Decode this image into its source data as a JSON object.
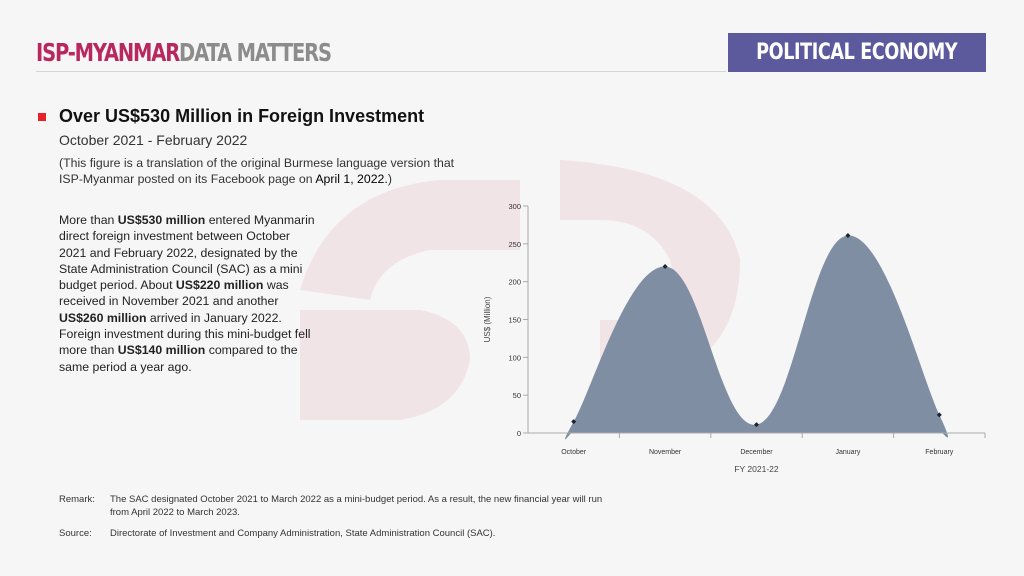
{
  "header": {
    "brand_primary": "ISP-MYANMAR",
    "brand_secondary": "DATA MATTERS",
    "section": "POLITICAL ECONOMY"
  },
  "colors": {
    "brand": "#b8285f",
    "section_bg": "#5c5a9c",
    "area_fill": "#7f8ea2",
    "bullet": "#e8202a"
  },
  "content": {
    "title": "Over US$530 Million in Foreign Investment",
    "subtitle": "October 2021 - February 2022",
    "note_prefix": "(This figure is a translation of the original Burmese language version that ISP-Myanmar posted on its Facebook page on ",
    "note_date": "April 1, 2022.",
    "note_suffix": ")",
    "body": [
      {
        "t": "More than ",
        "b": false
      },
      {
        "t": "US$530 million",
        "b": true
      },
      {
        "t": " entered Myanmarin direct foreign investment between October 2021 and February 2022, designated by the State Administration Council (SAC) as a mini budget period. About ",
        "b": false
      },
      {
        "t": "US$220 million",
        "b": true
      },
      {
        "t": " was received in November 2021 and another ",
        "b": false
      },
      {
        "t": "US$260 million",
        "b": true
      },
      {
        "t": " arrived in January 2022. Foreign investment during this mini-budget fell more than ",
        "b": false
      },
      {
        "t": "US$140 million",
        "b": true
      },
      {
        "t": " compared to the same period a year ago.",
        "b": false
      }
    ]
  },
  "footer": {
    "remark_label": "Remark:",
    "remark": "The SAC designated October 2021 to March 2022 as a mini-budget period. As a result, the new financial year will run from April 2022 to March 2023.",
    "source_label": "Source:",
    "source": "Directorate of Investment and Company Administration, State Administration Council (SAC)."
  },
  "chart_data": {
    "type": "area",
    "categories": [
      "October",
      "November",
      "December",
      "January",
      "February"
    ],
    "values": [
      15,
      220,
      11,
      261,
      24
    ],
    "xlabel": "FY 2021-22",
    "ylabel": "US$ (Million)",
    "ylim": [
      0,
      300
    ],
    "yticks": [
      0,
      50,
      100,
      150,
      200,
      250,
      300
    ],
    "grid": false,
    "smooth": true
  }
}
